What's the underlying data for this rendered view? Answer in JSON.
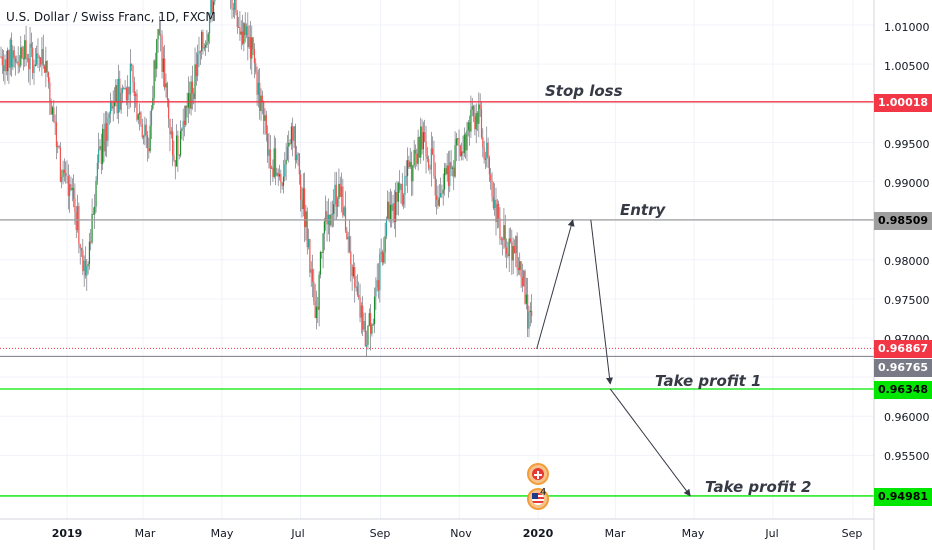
{
  "header": {
    "title": "U.S. Dollar / Swiss Franc, 1D, FXCM"
  },
  "annotations": {
    "stop_loss": "Stop loss",
    "entry": "Entry",
    "take_profit_1": "Take profit 1",
    "take_profit_2": "Take profit 2"
  },
  "price_axis": {
    "ticks": [
      "1.01000",
      "1.00500",
      "0.99500",
      "0.99000",
      "0.98000",
      "0.97500",
      "0.97000",
      "0.96000",
      "0.95500"
    ]
  },
  "time_axis": {
    "ticks": [
      "2019",
      "Mar",
      "May",
      "Jul",
      "Sep",
      "Nov",
      "2020",
      "Mar",
      "May",
      "Jul",
      "Sep"
    ]
  },
  "price_labels": {
    "stop_loss": "1.00018",
    "entry": "0.98509",
    "last": "0.96867",
    "low": "0.96765",
    "take_profit_1": "0.96348",
    "take_profit_2": "0.94981"
  },
  "events": {
    "count": "4",
    "icons": [
      "swiss-flag-icon",
      "us-flag-icon"
    ]
  },
  "colors": {
    "up_candle": "#26a69a",
    "up_candle_green": "#1b8c2e",
    "down_candle": "#ef5350",
    "stop_loss_line": "#f23645",
    "entry_line": "#9e9e9e",
    "take_profit_line": "#00e600",
    "last_price": "#f23645"
  },
  "chart_data": {
    "type": "candlestick",
    "symbol": "USDCHF",
    "timeframe": "1D",
    "x_range": [
      "2018-12",
      "2020-09"
    ],
    "y_range": [
      0.947,
      1.014
    ],
    "levels": {
      "stop_loss": 1.00018,
      "entry": 0.98509,
      "last": 0.96867,
      "low": 0.96765,
      "take_profit_1": 0.96348,
      "take_profit_2": 0.94981
    },
    "price_path": [
      [
        "2018-12-15",
        1.006
      ],
      [
        "2018-12-28",
        0.99
      ],
      [
        "2019-01-08",
        0.986
      ],
      [
        "2019-01-15",
        0.978
      ],
      [
        "2019-01-25",
        0.992
      ],
      [
        "2019-02-05",
        1.0
      ],
      [
        "2019-02-20",
        1.003
      ],
      [
        "2019-03-05",
        0.994
      ],
      [
        "2019-03-12",
        1.01
      ],
      [
        "2019-03-25",
        0.993
      ],
      [
        "2019-04-05",
        1.0
      ],
      [
        "2019-04-20",
        1.01
      ],
      [
        "2019-05-01",
        1.02
      ],
      [
        "2019-05-15",
        1.01
      ],
      [
        "2019-05-25",
        1.006
      ],
      [
        "2019-06-05",
        0.995
      ],
      [
        "2019-06-15",
        0.99
      ],
      [
        "2019-06-25",
        0.996
      ],
      [
        "2019-07-05",
        0.985
      ],
      [
        "2019-07-12",
        0.972
      ],
      [
        "2019-07-20",
        0.985
      ],
      [
        "2019-08-01",
        0.99
      ],
      [
        "2019-08-10",
        0.978
      ],
      [
        "2019-08-20",
        0.97
      ],
      [
        "2019-08-28",
        0.974
      ],
      [
        "2019-09-05",
        0.985
      ],
      [
        "2019-09-15",
        0.988
      ],
      [
        "2019-09-25",
        0.992
      ],
      [
        "2019-10-05",
        0.996
      ],
      [
        "2019-10-15",
        0.989
      ],
      [
        "2019-10-25",
        0.992
      ],
      [
        "2019-11-05",
        0.995
      ],
      [
        "2019-11-15",
        0.999
      ],
      [
        "2019-11-22",
        0.993
      ],
      [
        "2019-12-01",
        0.985
      ],
      [
        "2019-12-10",
        0.982
      ],
      [
        "2019-12-18",
        0.98
      ],
      [
        "2019-12-25",
        0.972
      ],
      [
        "2019-12-31",
        0.9686
      ]
    ],
    "projection": [
      [
        "2019-12-31",
        0.9686
      ],
      [
        "2020-01-28",
        0.98509
      ],
      [
        "2020-02-26",
        0.96348
      ],
      [
        "2020-04-28",
        0.94981
      ]
    ]
  }
}
